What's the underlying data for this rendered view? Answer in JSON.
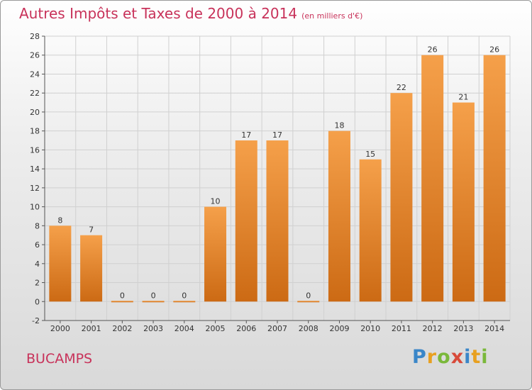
{
  "header": {
    "title": "Autres Impôts et Taxes de 2000 à 2014",
    "subtitle": "(en milliers d'€)"
  },
  "commune": "BUCAMPS",
  "logo": {
    "letters": [
      {
        "char": "P",
        "color": "#3a86c8"
      },
      {
        "char": "r",
        "color": "#e8a020"
      },
      {
        "char": "o",
        "color": "#7ab83a"
      },
      {
        "char": "x",
        "color": "#d84a3a"
      },
      {
        "char": "i",
        "color": "#3a86c8"
      },
      {
        "char": "t",
        "color": "#e8a020"
      },
      {
        "char": "i",
        "color": "#7ab83a"
      }
    ]
  },
  "chart_data": {
    "type": "bar",
    "title": "Autres Impôts et Taxes de 2000 à 2014",
    "subtitle": "(en milliers d'€)",
    "categories": [
      "2000",
      "2001",
      "2002",
      "2003",
      "2004",
      "2005",
      "2006",
      "2007",
      "2008",
      "2009",
      "2010",
      "2011",
      "2012",
      "2013",
      "2014"
    ],
    "values": [
      8,
      7,
      0,
      0,
      0,
      10,
      17,
      17,
      0,
      18,
      15,
      22,
      26,
      21,
      26
    ],
    "ylim": [
      -2,
      28
    ],
    "yticks": [
      -2,
      0,
      2,
      4,
      6,
      8,
      10,
      12,
      14,
      16,
      18,
      20,
      22,
      24,
      26,
      28
    ],
    "grid": true,
    "bar_color_top": "#f5a04a",
    "bar_color_bottom": "#cc6a14",
    "grid_color": "#d0d0d0"
  }
}
